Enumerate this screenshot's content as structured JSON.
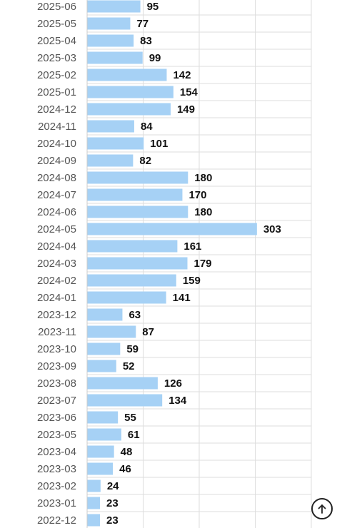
{
  "chart_data": {
    "type": "bar",
    "orientation": "horizontal",
    "categories": [
      "2025-06",
      "2025-05",
      "2025-04",
      "2025-03",
      "2025-02",
      "2025-01",
      "2024-12",
      "2024-11",
      "2024-10",
      "2024-09",
      "2024-08",
      "2024-07",
      "2024-06",
      "2024-05",
      "2024-04",
      "2024-03",
      "2024-02",
      "2024-01",
      "2023-12",
      "2023-11",
      "2023-10",
      "2023-09",
      "2023-08",
      "2023-07",
      "2023-06",
      "2023-05",
      "2023-04",
      "2023-03",
      "2023-02",
      "2023-01",
      "2022-12"
    ],
    "values": [
      95,
      77,
      83,
      99,
      142,
      154,
      149,
      84,
      101,
      82,
      180,
      170,
      180,
      303,
      161,
      179,
      159,
      141,
      63,
      87,
      59,
      52,
      126,
      134,
      55,
      61,
      48,
      46,
      24,
      23,
      23
    ],
    "xlim": [
      0,
      400
    ],
    "grid": true,
    "bar_color": "#a6d1f5",
    "grid_color": "#dddddd"
  },
  "scroll_top_icon": "arrow-up-circle-icon"
}
